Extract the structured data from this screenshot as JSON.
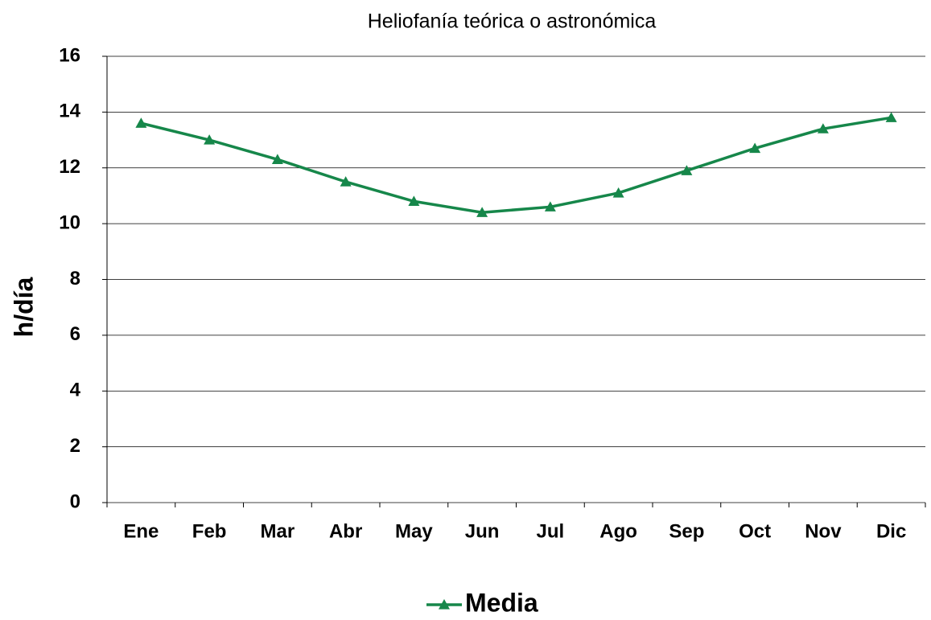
{
  "chart_data": {
    "type": "line",
    "title": "Heliofanía teórica o astronómica",
    "y_label": "h/día",
    "categories": [
      "Ene",
      "Feb",
      "Mar",
      "Abr",
      "May",
      "Jun",
      "Jul",
      "Ago",
      "Sep",
      "Oct",
      "Nov",
      "Dic"
    ],
    "series": [
      {
        "name": "Media",
        "color": "#16874a",
        "values": [
          13.6,
          13.0,
          12.3,
          11.5,
          10.8,
          10.4,
          10.6,
          11.1,
          11.9,
          12.7,
          13.4,
          13.8
        ]
      }
    ],
    "ylim": [
      0,
      16
    ],
    "yticks": [
      0,
      2,
      4,
      6,
      8,
      10,
      12,
      14,
      16
    ],
    "grid": true,
    "legend": "bottom"
  }
}
